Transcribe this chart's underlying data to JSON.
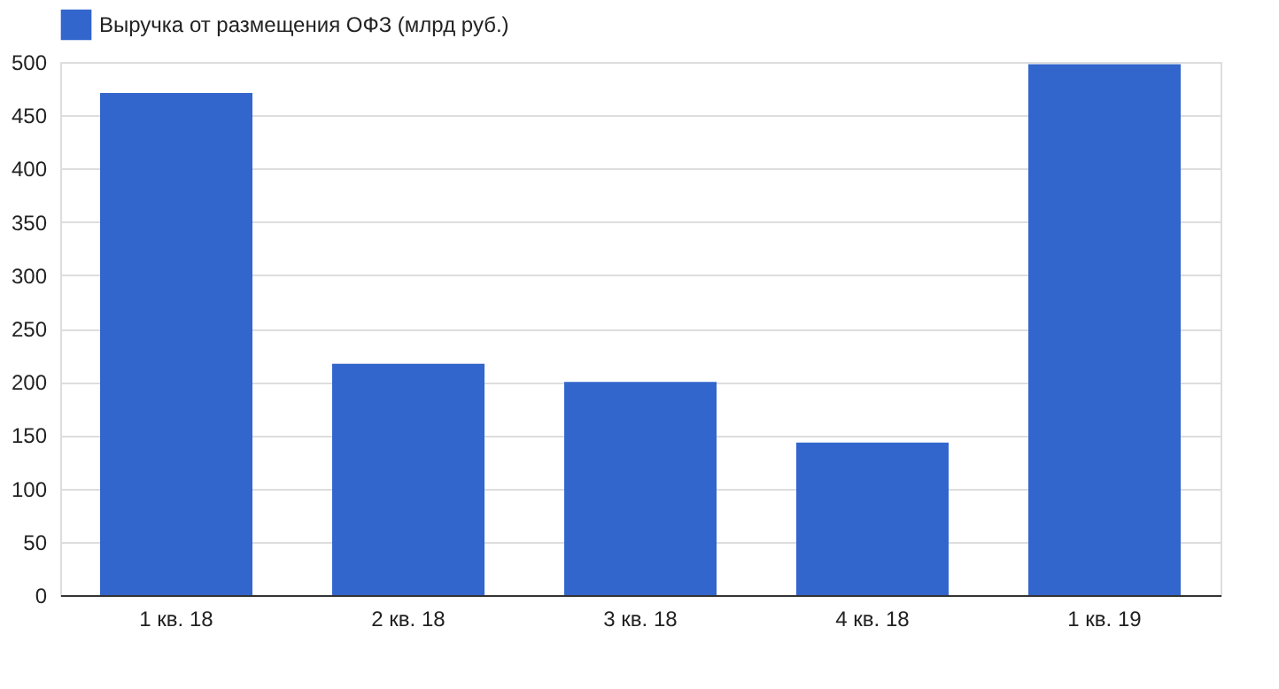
{
  "chart_data": {
    "type": "bar",
    "categories": [
      "1 кв. 18",
      "2 кв. 18",
      "3 кв. 18",
      "4 кв. 18",
      "1 кв. 19"
    ],
    "series": [
      {
        "name": "Выручка от размещения ОФЗ (млрд руб.)",
        "color": "#3366cc",
        "values": [
          471,
          217,
          200,
          143,
          498
        ]
      }
    ],
    "ylim": [
      0,
      500
    ],
    "yticks": [
      0,
      50,
      100,
      150,
      200,
      250,
      300,
      350,
      400,
      450,
      500
    ],
    "grid": "y",
    "legend": "top left"
  }
}
